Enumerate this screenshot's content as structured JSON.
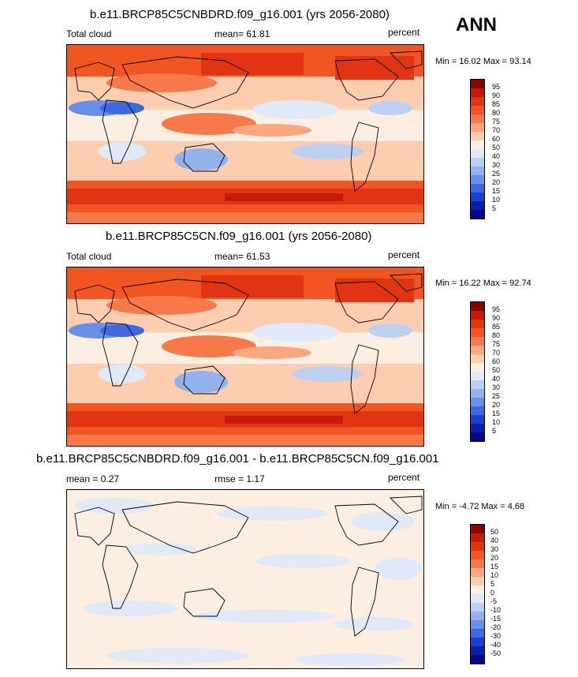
{
  "season": "ANN",
  "panels": [
    {
      "title": "b.e11.BRCP85C5CNBDRD.f09_g16.001 (yrs 2056-2080)",
      "left_label": "Total cloud",
      "center_label": "mean=  61.81",
      "right_label": "percent",
      "minmax": "Min =  16.02 Max =  93.14",
      "levels": [
        "95",
        "90",
        "85",
        "80",
        "75",
        "70",
        "60",
        "50",
        "40",
        "30",
        "25",
        "20",
        "15",
        "10",
        "5"
      ],
      "colors": [
        "#8b0000",
        "#c51b0b",
        "#e03412",
        "#f15522",
        "#f7794a",
        "#fba67e",
        "#fdcdb0",
        "#fdeee2",
        "#dfe9f8",
        "#bdd0f2",
        "#93b1ea",
        "#6a8fe6",
        "#3e68e0",
        "#1b40d1",
        "#0b1fa8",
        "#06088a"
      ]
    },
    {
      "title": "b.e11.BRCP85C5CN.f09_g16.001 (yrs 2056-2080)",
      "left_label": "Total cloud",
      "center_label": "mean=  61.53",
      "right_label": "percent",
      "minmax": "Min =  16.22 Max =  92.74",
      "levels": [
        "95",
        "90",
        "85",
        "80",
        "75",
        "70",
        "60",
        "50",
        "40",
        "30",
        "25",
        "20",
        "15",
        "10",
        "5"
      ],
      "colors": [
        "#8b0000",
        "#c51b0b",
        "#e03412",
        "#f15522",
        "#f7794a",
        "#fba67e",
        "#fdcdb0",
        "#fdeee2",
        "#dfe9f8",
        "#bdd0f2",
        "#93b1ea",
        "#6a8fe6",
        "#3e68e0",
        "#1b40d1",
        "#0b1fa8",
        "#06088a"
      ]
    },
    {
      "title": "b.e11.BRCP85C5CNBDRD.f09_g16.001 - b.e11.BRCP85C5CN.f09_g16.001",
      "left_label": "mean =   0.27",
      "center_label": "rmse =   1.17",
      "right_label": "percent",
      "minmax": "Min =  -4.72 Max =   4.68",
      "levels": [
        "50",
        "40",
        "30",
        "20",
        "15",
        "10",
        "5",
        "0",
        "-5",
        "-10",
        "-15",
        "-20",
        "-30",
        "-40",
        "-50"
      ],
      "colors": [
        "#8b0000",
        "#c51b0b",
        "#e03412",
        "#f15522",
        "#f7794a",
        "#fba67e",
        "#fdcdb0",
        "#fdeee2",
        "#dfe9f8",
        "#bdd0f2",
        "#93b1ea",
        "#6a8fe6",
        "#3e68e0",
        "#1b40d1",
        "#0b1fa8",
        "#06088a"
      ]
    }
  ]
}
